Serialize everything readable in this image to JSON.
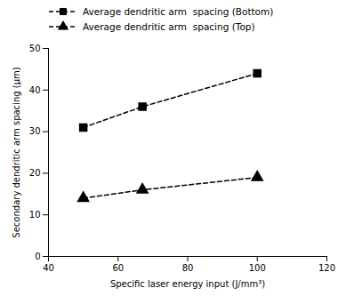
{
  "chart_data": {
    "type": "line",
    "xlabel": "Specific laser energy input (J/mm³)",
    "ylabel": "Secondary dendritic arm spacing (μm)",
    "x": [
      50,
      67,
      100
    ],
    "series": [
      {
        "name": "Average dendritic arm  spacing (Bottom)",
        "color": "#000000",
        "marker": "square",
        "line_style": "dashed",
        "values": [
          31,
          36,
          44
        ]
      },
      {
        "name": "Average dendritic arm  spacing (Top)",
        "color": "#000000",
        "marker": "triangle",
        "line_style": "dashed",
        "values": [
          14,
          16,
          19
        ]
      }
    ],
    "xlim": [
      40,
      120
    ],
    "ylim": [
      0,
      50
    ],
    "xticks": [
      40,
      60,
      80,
      100,
      120
    ],
    "yticks": [
      0,
      10,
      20,
      30,
      40,
      50
    ],
    "grid": false,
    "legend": "top"
  }
}
